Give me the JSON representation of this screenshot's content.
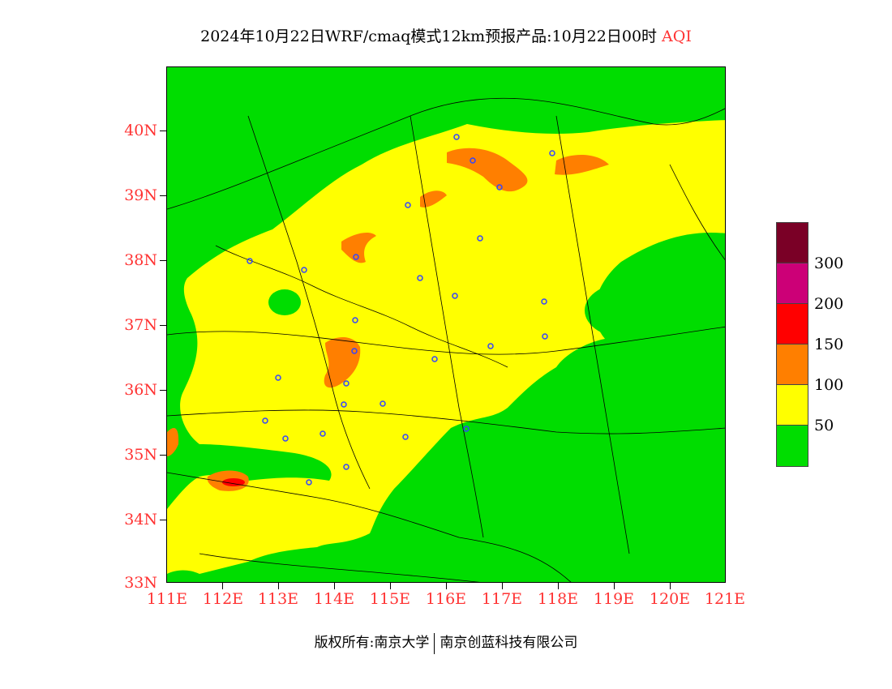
{
  "title": {
    "main": "2024年10月22日WRF/cmaq模式12km预报产品:10月22日00时",
    "variable": "AQI"
  },
  "map": {
    "lat_ticks": [
      "40N",
      "39N",
      "38N",
      "37N",
      "36N",
      "35N",
      "34N",
      "33N"
    ],
    "lon_ticks": [
      "111E",
      "112E",
      "113E",
      "114E",
      "115E",
      "116E",
      "117E",
      "118E",
      "119E",
      "120E",
      "121E"
    ]
  },
  "legend": {
    "colors": [
      "#7a0026",
      "#cc0077",
      "#ff0000",
      "#ff7f00",
      "#ffff00",
      "#00dd00"
    ],
    "labels": [
      "300",
      "200",
      "150",
      "100",
      "50"
    ]
  },
  "footer": {
    "left": "版权所有:南京大学",
    "right": "南京创蓝科技有限公司"
  }
}
